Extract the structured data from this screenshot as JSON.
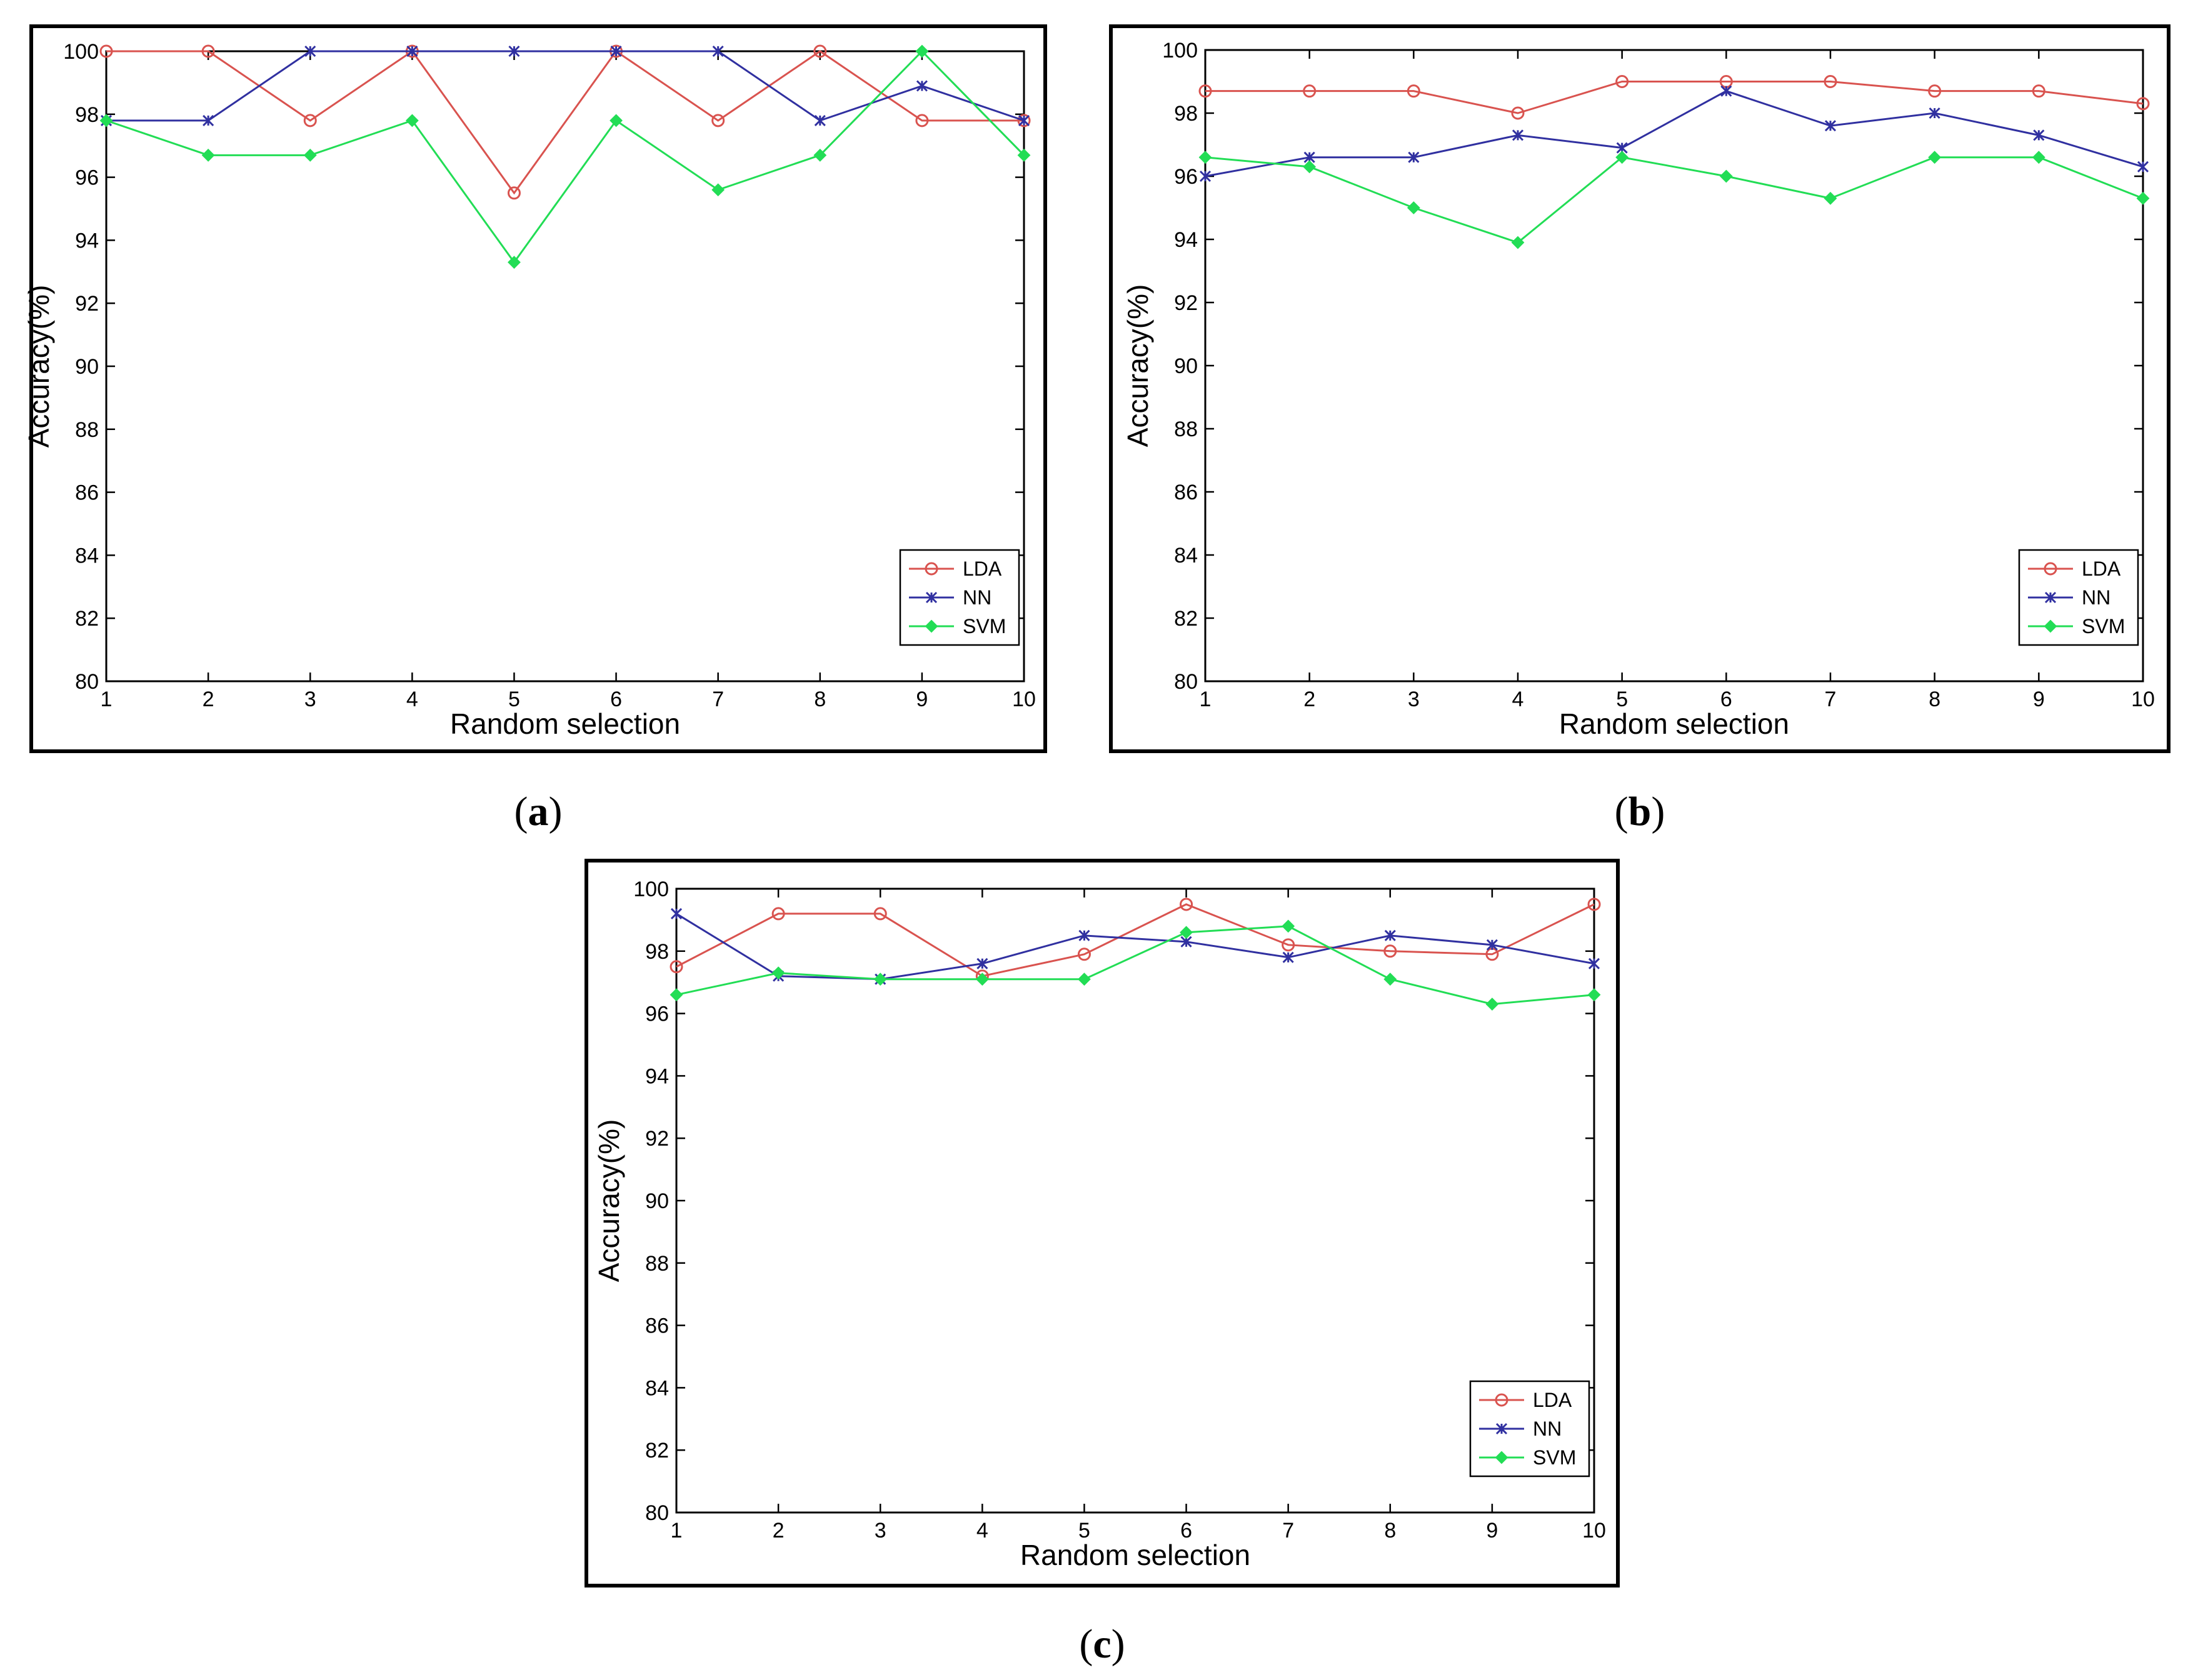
{
  "figure": {
    "panels": [
      {
        "label": "a"
      },
      {
        "label": "b"
      },
      {
        "label": "c"
      }
    ]
  },
  "colors": {
    "LDA": "#d9534f",
    "NN": "#3030a0",
    "SVM": "#22dd55",
    "axis": "#000000",
    "frame": "#000000"
  },
  "chart_data": [
    {
      "type": "line",
      "panel": "a",
      "xlabel": "Random selection",
      "ylabel": "Accuracy(%)",
      "xlim": [
        1,
        10
      ],
      "ylim": [
        80,
        100
      ],
      "x": [
        1,
        2,
        3,
        4,
        5,
        6,
        7,
        8,
        9,
        10
      ],
      "xticks": [
        "1",
        "2",
        "3",
        "4",
        "5",
        "6",
        "7",
        "8",
        "9",
        "10"
      ],
      "yticks": [
        "80",
        "82",
        "84",
        "86",
        "88",
        "90",
        "92",
        "94",
        "96",
        "98",
        "100"
      ],
      "legend_position": "bottom-right",
      "series": [
        {
          "name": "LDA",
          "marker": "circle",
          "values": [
            100,
            100,
            97.8,
            100,
            95.5,
            100,
            97.8,
            100,
            97.8,
            97.8
          ]
        },
        {
          "name": "NN",
          "marker": "star",
          "values": [
            97.8,
            97.8,
            100,
            100,
            100,
            100,
            100,
            97.8,
            98.9,
            97.8
          ]
        },
        {
          "name": "SVM",
          "marker": "diamond",
          "values": [
            97.8,
            96.7,
            96.7,
            97.8,
            93.3,
            97.8,
            95.6,
            96.7,
            100,
            96.7
          ]
        }
      ]
    },
    {
      "type": "line",
      "panel": "b",
      "xlabel": "Random selection",
      "ylabel": "Accuracy(%)",
      "xlim": [
        1,
        10
      ],
      "ylim": [
        80,
        100
      ],
      "x": [
        1,
        2,
        3,
        4,
        5,
        6,
        7,
        8,
        9,
        10
      ],
      "xticks": [
        "1",
        "2",
        "3",
        "4",
        "5",
        "6",
        "7",
        "8",
        "9",
        "10"
      ],
      "yticks": [
        "80",
        "82",
        "84",
        "86",
        "88",
        "90",
        "92",
        "94",
        "96",
        "98",
        "100"
      ],
      "legend_position": "bottom-right",
      "series": [
        {
          "name": "LDA",
          "marker": "circle",
          "values": [
            98.7,
            98.7,
            98.7,
            98.0,
            99.0,
            99.0,
            99.0,
            98.7,
            98.7,
            98.3
          ]
        },
        {
          "name": "NN",
          "marker": "star",
          "values": [
            96.0,
            96.6,
            96.6,
            97.3,
            96.9,
            98.7,
            97.6,
            98.0,
            97.3,
            96.3
          ]
        },
        {
          "name": "SVM",
          "marker": "diamond",
          "values": [
            96.6,
            96.3,
            95.0,
            93.9,
            96.6,
            96.0,
            95.3,
            96.6,
            96.6,
            95.3
          ]
        }
      ]
    },
    {
      "type": "line",
      "panel": "c",
      "xlabel": "Random selection",
      "ylabel": "Accuracy(%)",
      "xlim": [
        1,
        10
      ],
      "ylim": [
        80,
        100
      ],
      "x": [
        1,
        2,
        3,
        4,
        5,
        6,
        7,
        8,
        9,
        10
      ],
      "xticks": [
        "1",
        "2",
        "3",
        "4",
        "5",
        "6",
        "7",
        "8",
        "9",
        "10"
      ],
      "yticks": [
        "80",
        "82",
        "84",
        "86",
        "88",
        "90",
        "92",
        "94",
        "96",
        "98",
        "100"
      ],
      "legend_position": "bottom-right",
      "series": [
        {
          "name": "LDA",
          "marker": "circle",
          "values": [
            97.5,
            99.2,
            99.2,
            97.2,
            97.9,
            99.5,
            98.2,
            98.0,
            97.9,
            99.5
          ]
        },
        {
          "name": "NN",
          "marker": "star",
          "values": [
            99.2,
            97.2,
            97.1,
            97.6,
            98.5,
            98.3,
            97.8,
            98.5,
            98.2,
            97.6
          ]
        },
        {
          "name": "SVM",
          "marker": "diamond",
          "values": [
            96.6,
            97.3,
            97.1,
            97.1,
            97.1,
            98.6,
            98.8,
            97.1,
            96.3,
            96.6
          ]
        }
      ]
    }
  ]
}
